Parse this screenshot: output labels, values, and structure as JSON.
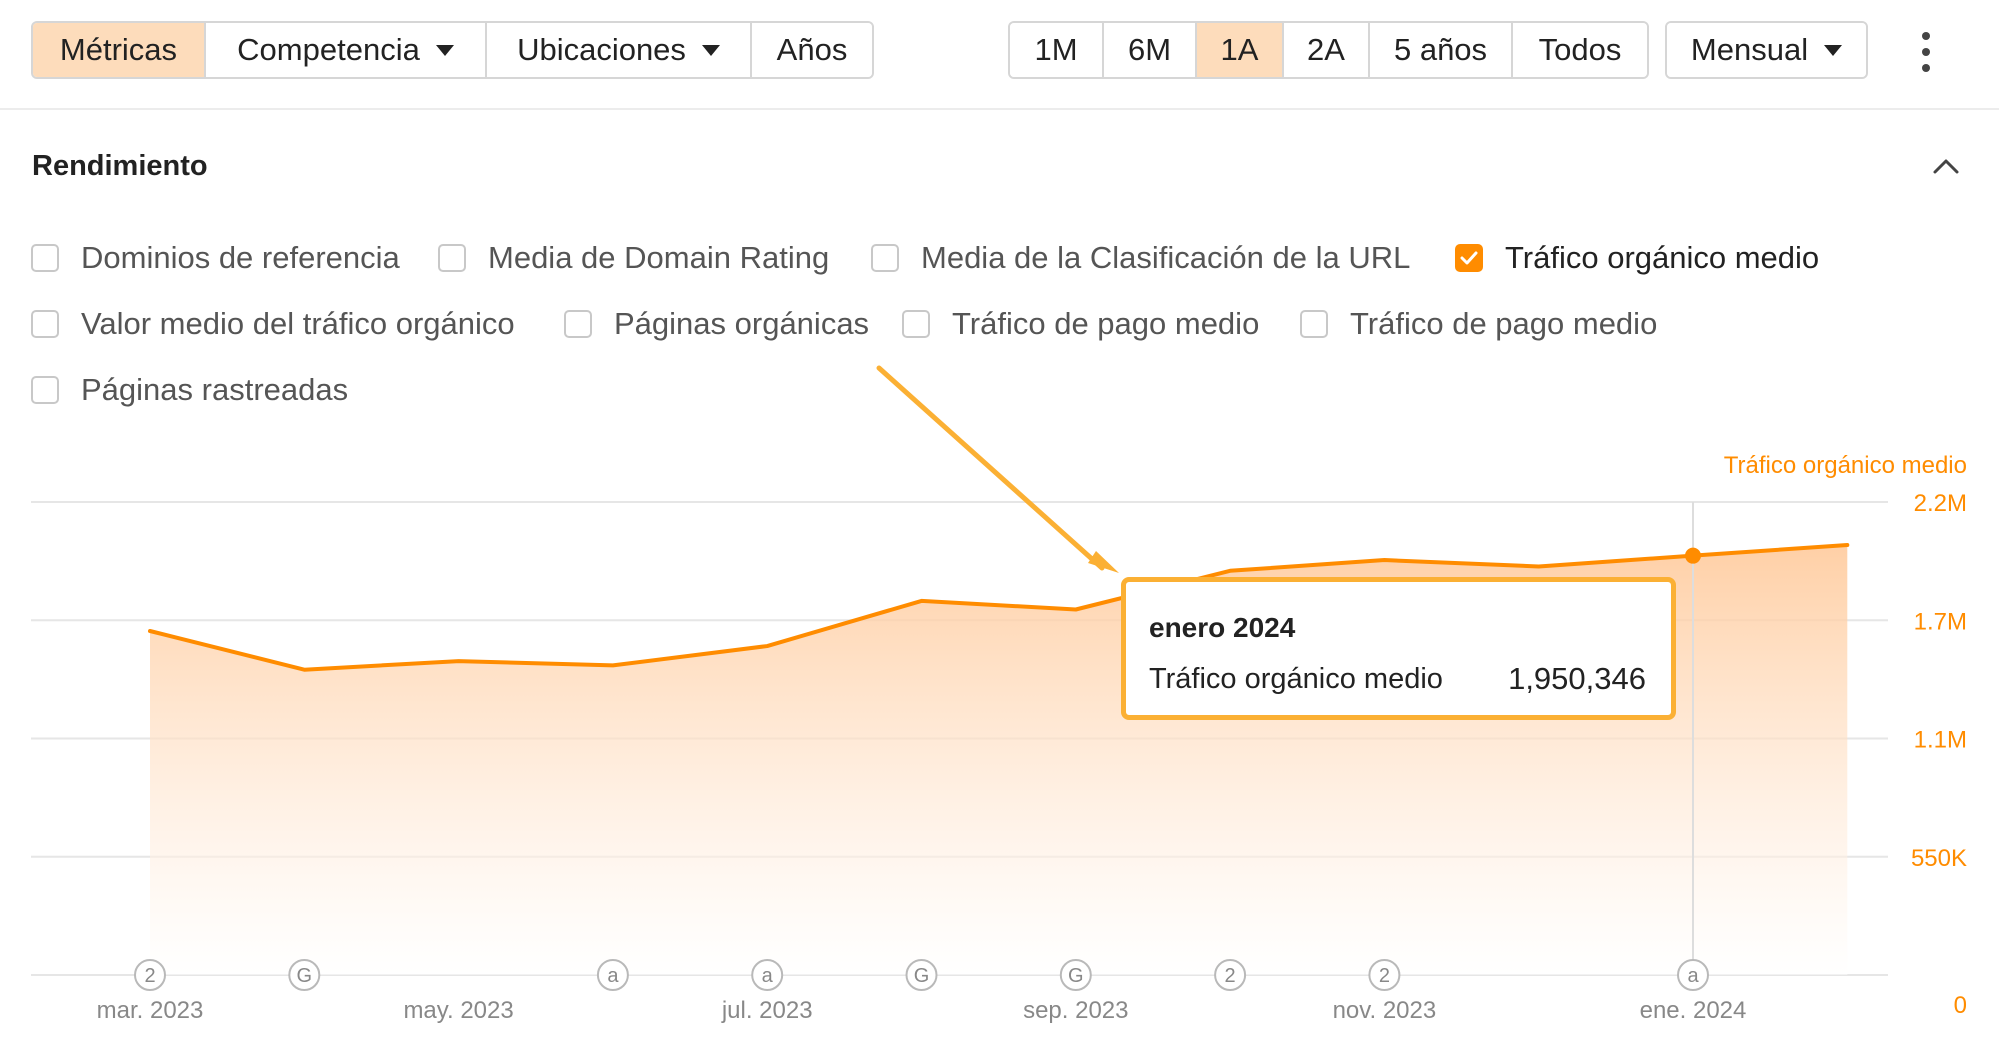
{
  "toolbar": {
    "metric_tabs": [
      "Métricas",
      "Competencia",
      "Ubicaciones",
      "Años"
    ],
    "range_buttons": [
      "1M",
      "6M",
      "1A",
      "2A",
      "5 años",
      "Todos"
    ],
    "interval_label": "Mensual"
  },
  "section": {
    "title": "Rendimiento"
  },
  "checkboxes": [
    {
      "label": "Dominios de referencia",
      "checked": false
    },
    {
      "label": "Media de Domain Rating",
      "checked": false
    },
    {
      "label": "Media de la Clasificación de la URL",
      "checked": false
    },
    {
      "label": "Tráfico orgánico medio",
      "checked": true
    },
    {
      "label": "Valor medio del tráfico orgánico",
      "checked": false
    },
    {
      "label": "Páginas orgánicas",
      "checked": false
    },
    {
      "label": "Tráfico de pago medio",
      "checked": false
    },
    {
      "label": "Tráfico de pago medio",
      "checked": false
    },
    {
      "label": "Páginas rastreadas",
      "checked": false
    }
  ],
  "tooltip": {
    "title": "enero 2024",
    "label": "Tráfico orgánico medio",
    "value": "1,950,346"
  },
  "colors": {
    "accent": "#ff8c00",
    "accent_light": "#fddcbb",
    "tooltip_border": "#fbb034",
    "grid": "#e6e6e6"
  },
  "chart_data": {
    "type": "area",
    "ylabel": "Tráfico orgánico medio",
    "ylim": [
      0,
      2200000
    ],
    "yticks": [
      {
        "value": 0,
        "label": "0"
      },
      {
        "value": 550000,
        "label": "550K"
      },
      {
        "value": 1100000,
        "label": "1.1M"
      },
      {
        "value": 1650000,
        "label": "1.7M"
      },
      {
        "value": 2200000,
        "label": "2.2M"
      }
    ],
    "x": [
      "2023-03",
      "2023-04",
      "2023-05",
      "2023-06",
      "2023-07",
      "2023-08",
      "2023-09",
      "2023-10",
      "2023-11",
      "2023-12",
      "2024-01",
      "2024-02"
    ],
    "xtick_labels": [
      {
        "x": "2023-03",
        "label": "mar. 2023"
      },
      {
        "x": "2023-05",
        "label": "may. 2023"
      },
      {
        "x": "2023-07",
        "label": "jul. 2023"
      },
      {
        "x": "2023-09",
        "label": "sep. 2023"
      },
      {
        "x": "2023-11",
        "label": "nov. 2023"
      },
      {
        "x": "2024-01",
        "label": "ene. 2024"
      }
    ],
    "series": [
      {
        "name": "Tráfico orgánico medio",
        "values": [
          1600000,
          1420000,
          1460000,
          1440000,
          1530000,
          1740000,
          1700000,
          1880000,
          1930000,
          1900000,
          1950346,
          2000000
        ]
      }
    ],
    "highlight": {
      "x": "2024-01",
      "value": 1950346
    },
    "annotations": [
      {
        "x": "2023-03",
        "marker": "2"
      },
      {
        "x": "2023-04",
        "marker": "G"
      },
      {
        "x": "2023-06",
        "marker": "a"
      },
      {
        "x": "2023-07",
        "marker": "a"
      },
      {
        "x": "2023-08",
        "marker": "G"
      },
      {
        "x": "2023-09",
        "marker": "G"
      },
      {
        "x": "2023-10",
        "marker": "2"
      },
      {
        "x": "2023-11",
        "marker": "2"
      },
      {
        "x": "2024-01",
        "marker": "a"
      }
    ],
    "grid": true
  }
}
